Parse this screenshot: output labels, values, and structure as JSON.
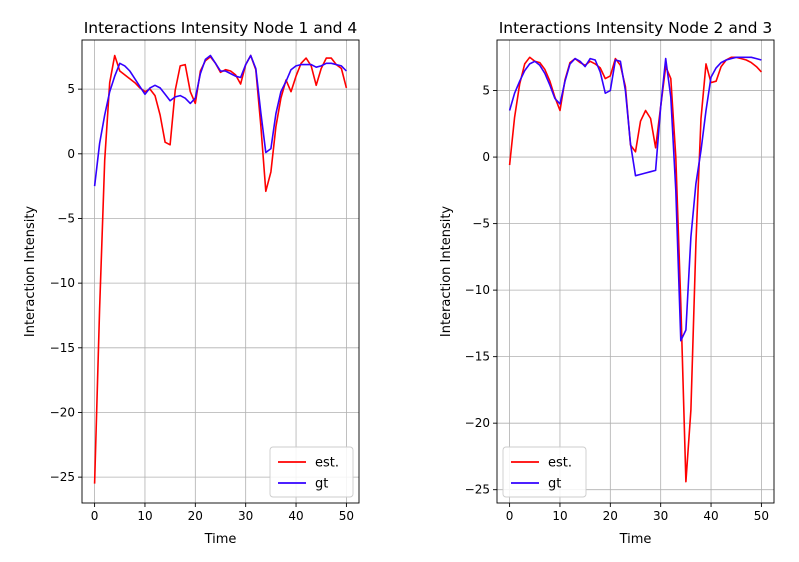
{
  "chart_data": [
    {
      "type": "line",
      "title": "Interactions Intensity Node 1 and 4",
      "xlabel": "Time",
      "ylabel": "Interaction Intensity",
      "xlim": [
        -2.5,
        52.5
      ],
      "ylim": [
        -27,
        8.8
      ],
      "xticks": [
        0,
        10,
        20,
        30,
        40,
        50
      ],
      "yticks": [
        5,
        0,
        -5,
        -10,
        -15,
        -20,
        -25
      ],
      "grid": true,
      "legend": "lower-right",
      "series": [
        {
          "name": "est.",
          "color": "#ff0000",
          "x": [
            0,
            1,
            2,
            3,
            4,
            5,
            6,
            7,
            8,
            9,
            10,
            11,
            12,
            13,
            14,
            15,
            16,
            17,
            18,
            19,
            20,
            21,
            22,
            23,
            24,
            25,
            26,
            27,
            28,
            29,
            30,
            31,
            32,
            33,
            34,
            35,
            36,
            37,
            38,
            39,
            40,
            41,
            42,
            43,
            44,
            45,
            46,
            47,
            48,
            49,
            50
          ],
          "y": [
            -25.5,
            -12.0,
            -0.5,
            5.5,
            7.6,
            6.4,
            6.1,
            5.8,
            5.5,
            5.1,
            4.8,
            5.0,
            4.5,
            3.0,
            0.9,
            0.7,
            4.9,
            6.8,
            6.9,
            4.8,
            3.9,
            6.4,
            7.2,
            7.5,
            7.0,
            6.3,
            6.5,
            6.4,
            6.1,
            5.4,
            6.9,
            7.6,
            6.5,
            2.2,
            -2.9,
            -1.4,
            2.1,
            4.3,
            5.7,
            4.8,
            6.0,
            7.0,
            7.4,
            6.8,
            5.3,
            6.6,
            7.4,
            7.4,
            6.9,
            6.6,
            5.1
          ]
        },
        {
          "name": "gt",
          "color": "#3300ff",
          "x": [
            0,
            1,
            2,
            3,
            4,
            5,
            6,
            7,
            8,
            9,
            10,
            11,
            12,
            13,
            14,
            15,
            16,
            17,
            18,
            19,
            20,
            21,
            22,
            23,
            24,
            25,
            26,
            27,
            28,
            29,
            30,
            31,
            32,
            33,
            34,
            35,
            36,
            37,
            38,
            39,
            40,
            41,
            42,
            43,
            44,
            45,
            46,
            47,
            48,
            49,
            50
          ],
          "y": [
            -2.5,
            0.8,
            3.0,
            4.8,
            6.0,
            7.0,
            6.8,
            6.4,
            5.8,
            5.2,
            4.6,
            5.1,
            5.3,
            5.1,
            4.6,
            4.1,
            4.4,
            4.5,
            4.3,
            3.9,
            4.3,
            6.2,
            7.3,
            7.6,
            7.0,
            6.4,
            6.4,
            6.2,
            6.0,
            5.9,
            6.9,
            7.6,
            6.6,
            3.2,
            0.1,
            0.4,
            3.1,
            4.8,
            5.6,
            6.5,
            6.8,
            6.9,
            6.9,
            6.9,
            6.7,
            6.8,
            7.0,
            7.0,
            6.9,
            6.8,
            6.4
          ]
        }
      ]
    },
    {
      "type": "line",
      "title": "Interactions Intensity Node 2 and 3",
      "xlabel": "Time",
      "ylabel": "Interaction Intensity",
      "xlim": [
        -2.5,
        52.5
      ],
      "ylim": [
        -26,
        8.8
      ],
      "xticks": [
        0,
        10,
        20,
        30,
        40,
        50
      ],
      "yticks": [
        5,
        0,
        -5,
        -10,
        -15,
        -20,
        -25
      ],
      "grid": true,
      "legend": "lower-left",
      "series": [
        {
          "name": "est.",
          "color": "#ff0000",
          "x": [
            0,
            1,
            2,
            3,
            4,
            5,
            6,
            7,
            8,
            9,
            10,
            11,
            12,
            13,
            14,
            15,
            16,
            17,
            18,
            19,
            20,
            21,
            22,
            23,
            24,
            25,
            26,
            27,
            28,
            29,
            30,
            31,
            32,
            33,
            34,
            35,
            36,
            37,
            38,
            39,
            40,
            41,
            42,
            43,
            44,
            45,
            46,
            47,
            48,
            49,
            50
          ],
          "y": [
            -0.6,
            3.0,
            5.5,
            7.0,
            7.5,
            7.2,
            7.1,
            6.6,
            5.7,
            4.5,
            3.5,
            5.8,
            7.1,
            7.4,
            7.1,
            6.9,
            7.2,
            7.0,
            6.7,
            5.9,
            6.1,
            7.4,
            6.9,
            5.3,
            0.9,
            0.4,
            2.7,
            3.5,
            2.9,
            0.7,
            3.8,
            6.8,
            5.9,
            0.0,
            -11.0,
            -24.4,
            -19.0,
            -6.5,
            2.9,
            7.0,
            5.6,
            5.7,
            6.8,
            7.3,
            7.5,
            7.5,
            7.4,
            7.3,
            7.1,
            6.8,
            6.4
          ]
        },
        {
          "name": "gt",
          "color": "#3300ff",
          "x": [
            0,
            1,
            2,
            3,
            4,
            5,
            6,
            7,
            8,
            9,
            10,
            11,
            12,
            13,
            14,
            15,
            16,
            17,
            18,
            19,
            20,
            21,
            22,
            23,
            24,
            25,
            26,
            27,
            28,
            29,
            30,
            31,
            32,
            33,
            34,
            35,
            36,
            37,
            38,
            39,
            40,
            41,
            42,
            43,
            44,
            45,
            46,
            47,
            48,
            49,
            50
          ],
          "y": [
            3.5,
            4.8,
            5.7,
            6.5,
            7.0,
            7.2,
            6.9,
            6.3,
            5.4,
            4.4,
            4.0,
            5.7,
            7.0,
            7.4,
            7.2,
            6.8,
            7.4,
            7.3,
            6.4,
            4.8,
            5.0,
            7.3,
            7.2,
            5.0,
            1.0,
            -1.4,
            -1.3,
            -1.2,
            -1.1,
            -1.0,
            3.8,
            7.4,
            4.5,
            -2.5,
            -13.8,
            -13.0,
            -6.0,
            -2.0,
            0.5,
            3.5,
            6.0,
            6.7,
            7.1,
            7.3,
            7.4,
            7.5,
            7.5,
            7.5,
            7.5,
            7.4,
            7.3
          ]
        }
      ]
    }
  ]
}
